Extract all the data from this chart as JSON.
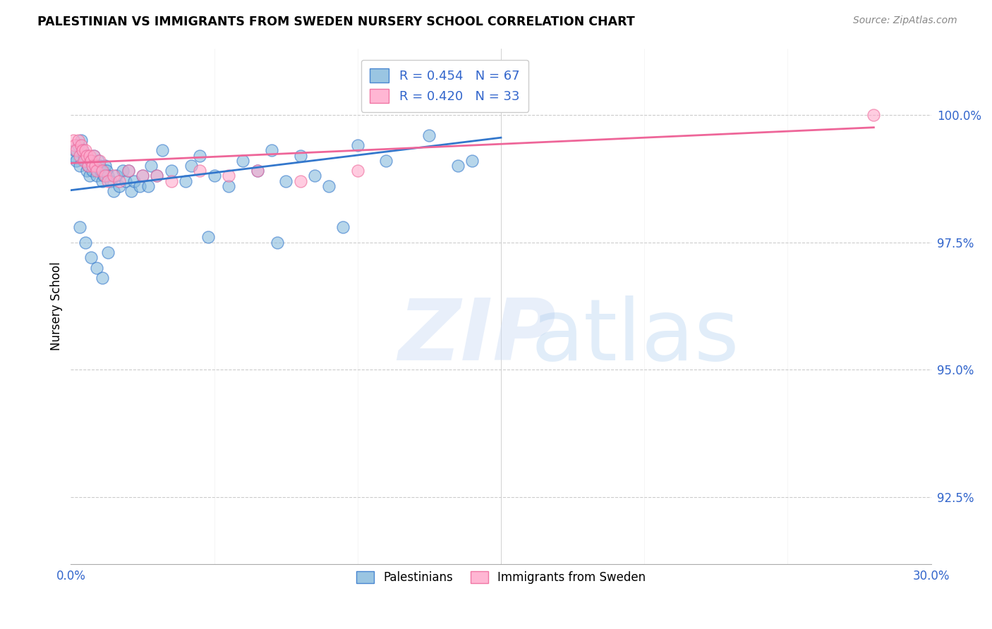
{
  "title": "PALESTINIAN VS IMMIGRANTS FROM SWEDEN NURSERY SCHOOL CORRELATION CHART",
  "source": "Source: ZipAtlas.com",
  "ylabel": "Nursery School",
  "ytick_labels": [
    "92.5%",
    "95.0%",
    "97.5%",
    "100.0%"
  ],
  "ytick_values": [
    92.5,
    95.0,
    97.5,
    100.0
  ],
  "xlim": [
    0.0,
    30.0
  ],
  "ylim": [
    91.2,
    101.3
  ],
  "legend_blue_label": "Palestinians",
  "legend_pink_label": "Immigrants from Sweden",
  "r_blue": 0.454,
  "n_blue": 67,
  "r_pink": 0.42,
  "n_pink": 33,
  "blue_color": "#88bbdd",
  "pink_color": "#ffaacc",
  "trend_blue": "#3377cc",
  "trend_pink": "#ee6699",
  "blue_points_x": [
    0.1,
    0.15,
    0.2,
    0.25,
    0.3,
    0.35,
    0.4,
    0.45,
    0.5,
    0.55,
    0.6,
    0.65,
    0.7,
    0.75,
    0.8,
    0.85,
    0.9,
    0.95,
    1.0,
    1.05,
    1.1,
    1.15,
    1.2,
    1.25,
    1.3,
    1.4,
    1.5,
    1.6,
    1.7,
    1.8,
    1.9,
    2.0,
    2.1,
    2.2,
    2.4,
    2.5,
    2.7,
    2.8,
    3.0,
    3.2,
    3.5,
    4.0,
    4.2,
    4.5,
    5.0,
    5.5,
    6.0,
    6.5,
    7.0,
    7.5,
    8.0,
    8.5,
    9.0,
    10.0,
    11.0,
    12.5,
    13.5,
    0.3,
    0.5,
    0.7,
    0.9,
    1.1,
    1.3,
    4.8,
    7.2,
    9.5,
    14.0
  ],
  "blue_points_y": [
    99.2,
    99.3,
    99.1,
    99.4,
    99.0,
    99.5,
    99.3,
    99.2,
    99.1,
    98.9,
    99.0,
    98.8,
    99.1,
    98.9,
    99.2,
    99.0,
    98.8,
    99.1,
    99.0,
    98.9,
    98.7,
    98.8,
    99.0,
    98.9,
    98.8,
    98.7,
    98.5,
    98.8,
    98.6,
    98.9,
    98.7,
    98.9,
    98.5,
    98.7,
    98.6,
    98.8,
    98.6,
    99.0,
    98.8,
    99.3,
    98.9,
    98.7,
    99.0,
    99.2,
    98.8,
    98.6,
    99.1,
    98.9,
    99.3,
    98.7,
    99.2,
    98.8,
    98.6,
    99.4,
    99.1,
    99.6,
    99.0,
    97.8,
    97.5,
    97.2,
    97.0,
    96.8,
    97.3,
    97.6,
    97.5,
    97.8,
    99.1
  ],
  "pink_points_x": [
    0.1,
    0.15,
    0.2,
    0.25,
    0.3,
    0.35,
    0.4,
    0.45,
    0.5,
    0.55,
    0.6,
    0.65,
    0.7,
    0.75,
    0.8,
    0.85,
    0.9,
    1.0,
    1.1,
    1.2,
    1.3,
    1.5,
    1.7,
    2.0,
    2.5,
    3.0,
    3.5,
    4.5,
    5.5,
    6.5,
    8.0,
    10.0,
    28.0
  ],
  "pink_points_y": [
    99.5,
    99.4,
    99.3,
    99.5,
    99.2,
    99.4,
    99.3,
    99.1,
    99.3,
    99.2,
    99.0,
    99.2,
    99.1,
    99.0,
    99.2,
    99.0,
    98.9,
    99.1,
    98.9,
    98.8,
    98.7,
    98.8,
    98.7,
    98.9,
    98.8,
    98.8,
    98.7,
    98.9,
    98.8,
    98.9,
    98.7,
    98.9,
    100.0
  ]
}
